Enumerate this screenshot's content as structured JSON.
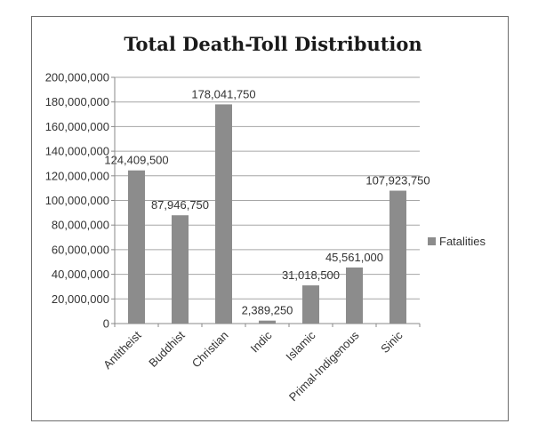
{
  "chart_data": {
    "type": "bar",
    "title": "Total Death-Toll Distribution",
    "categories": [
      "Antitheist",
      "Buddhist",
      "Christian",
      "Indic",
      "Islamic",
      "Primal-Indigenous",
      "Sinic"
    ],
    "series": [
      {
        "name": "Fatalities",
        "values": [
          124409500,
          87946750,
          178041750,
          2389250,
          31018500,
          45561000,
          107923750
        ],
        "data_labels": [
          "124,409,500",
          "87,946,750",
          "178,041,750",
          "2,389,250",
          "31,018,500",
          "45,561,000",
          "107,923,750"
        ],
        "color": "#8c8c8c"
      }
    ],
    "y_ticks": [
      "0",
      "20,000,000",
      "40,000,000",
      "60,000,000",
      "80,000,000",
      "100,000,000",
      "120,000,000",
      "140,000,000",
      "160,000,000",
      "180,000,000",
      "200,000,000"
    ],
    "ylim": [
      0,
      200000000
    ],
    "grid": true,
    "legend": "right"
  },
  "colors": {
    "bar": "#8c8c8c",
    "grid": "#a6a6a6",
    "axis": "#888888",
    "border": "#6d6d6d"
  }
}
